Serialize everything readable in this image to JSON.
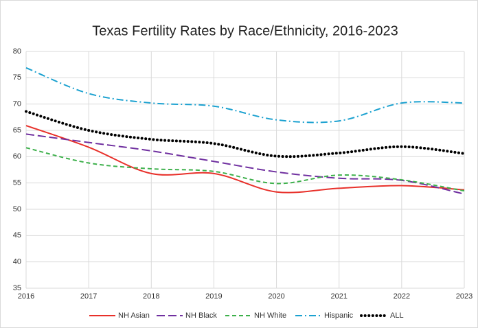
{
  "chart_data": {
    "type": "line",
    "title": "Texas Fertility Rates by Race/Ethnicity, 2016-2023",
    "x": [
      2016,
      2017,
      2018,
      2019,
      2020,
      2021,
      2022,
      2023
    ],
    "xlim": [
      2016,
      2023
    ],
    "xticks": [
      2016,
      2017,
      2018,
      2019,
      2020,
      2021,
      2022,
      2023
    ],
    "ylim": [
      35,
      80
    ],
    "yticks": [
      35,
      40,
      45,
      50,
      55,
      60,
      65,
      70,
      75,
      80
    ],
    "grid": true,
    "legend": "bottom",
    "series": [
      {
        "name": "NH Asian",
        "color": "#e8302a",
        "dash": "solid",
        "values": [
          65.9,
          61.8,
          56.8,
          56.8,
          53.3,
          54.0,
          54.5,
          53.7
        ]
      },
      {
        "name": "NH Black",
        "color": "#7030a0",
        "dash": "long",
        "values": [
          64.3,
          62.7,
          61.1,
          59.1,
          57.1,
          55.9,
          55.5,
          52.9
        ]
      },
      {
        "name": "NH White",
        "color": "#3db04b",
        "dash": "dashed",
        "values": [
          61.7,
          58.8,
          57.7,
          57.2,
          54.9,
          56.5,
          55.6,
          53.5
        ]
      },
      {
        "name": "Hispanic",
        "color": "#1ba1d0",
        "dash": "dashdot",
        "values": [
          76.9,
          72.0,
          70.2,
          69.6,
          67.0,
          66.8,
          70.2,
          70.2
        ]
      },
      {
        "name": "ALL",
        "color": "#000000",
        "dash": "dotted",
        "values": [
          68.6,
          65.0,
          63.3,
          62.5,
          60.1,
          60.7,
          61.9,
          60.6
        ]
      }
    ]
  }
}
